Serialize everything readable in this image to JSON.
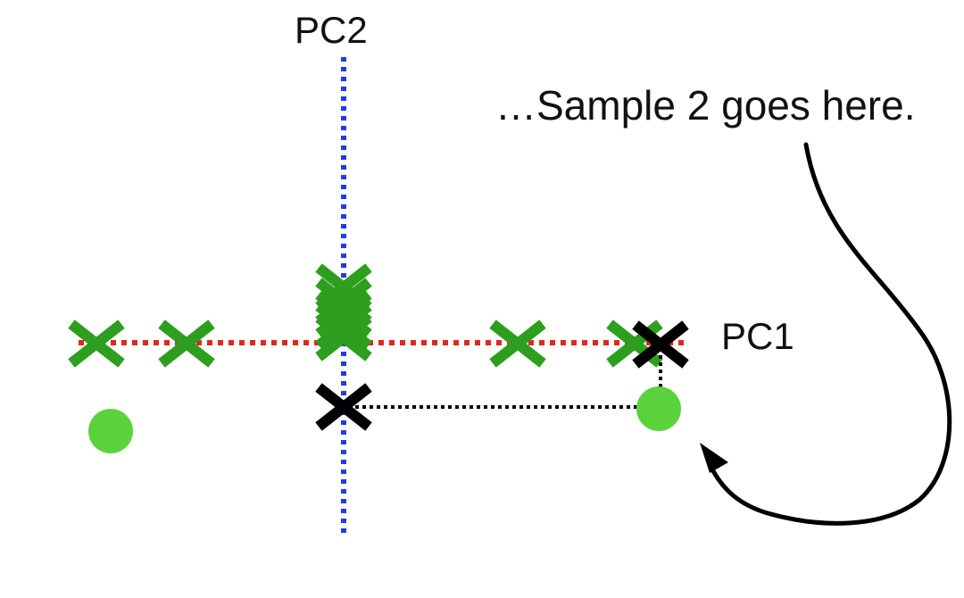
{
  "labels": {
    "pc2": "PC2",
    "pc1": "PC1",
    "annotation": "…Sample 2 goes here."
  },
  "colors": {
    "pc1_axis": "#e0281e",
    "pc2_axis": "#1f3de6",
    "cross": "#2e9e1e",
    "cross_black": "#000000",
    "dot": "#5ad23c",
    "guide": "#000000",
    "arrow": "#000000"
  },
  "icons": {
    "cross": "x-mark",
    "dot": "filled-circle",
    "arrow": "curved-arrow"
  }
}
